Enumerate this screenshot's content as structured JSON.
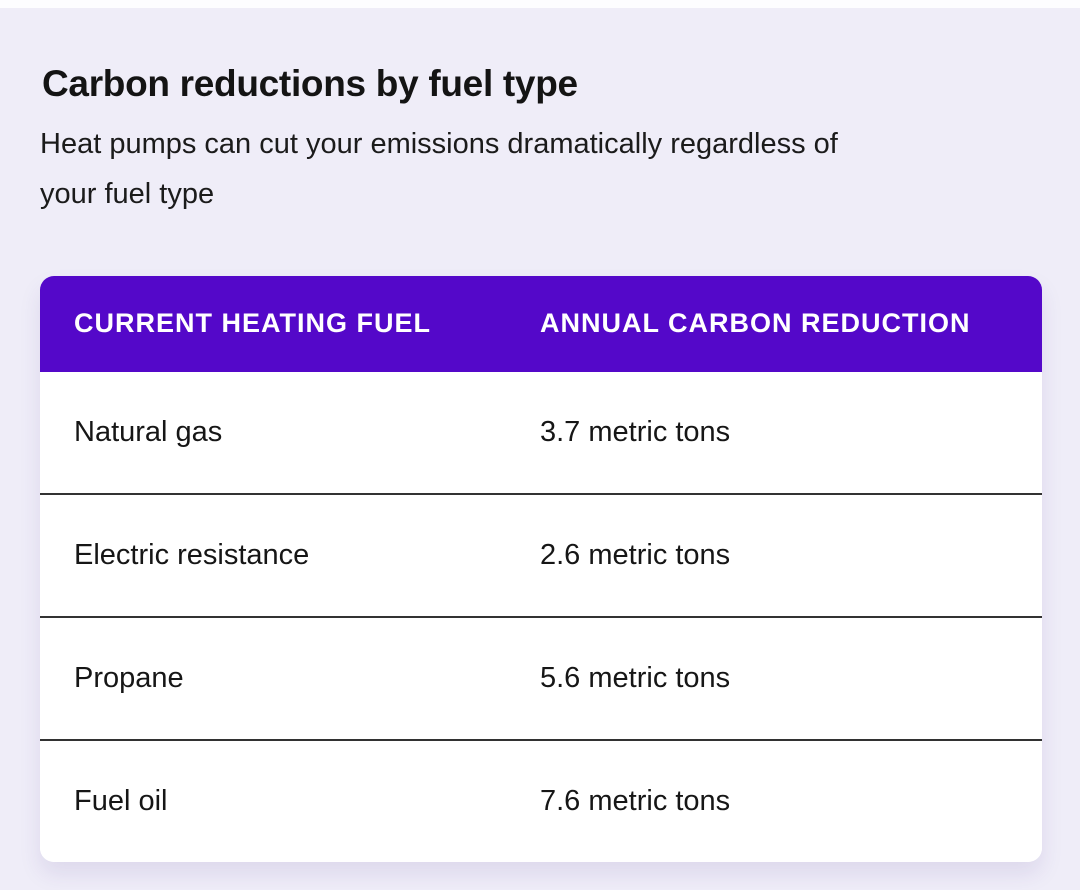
{
  "colors": {
    "page_bg": "#EFEDF8",
    "top_strip_bg": "#FDFDFF",
    "accent_header_bg": "#5408C9",
    "header_text": "#FFFFFF",
    "table_body_bg": "#FFFFFF",
    "row_divider": "#323232",
    "text": "#161616"
  },
  "header": {
    "title": "Carbon reductions by fuel type",
    "subtitle": "Heat pumps can cut your emissions dramatically regardless of your fuel type",
    "subtitle_line1": "Heat pumps can cut your emissions dramatically regardless of",
    "subtitle_line2": "your fuel type"
  },
  "chart_data": {
    "type": "table",
    "title": "Carbon reductions by fuel type",
    "subtitle": "Heat pumps can cut your emissions dramatically regardless of your fuel type",
    "columns": [
      "CURRENT HEATING FUEL",
      "ANNUAL CARBON REDUCTION"
    ],
    "rows": [
      {
        "fuel": "Natural gas",
        "reduction": "3.7 metric tons",
        "reduction_value": 3.7
      },
      {
        "fuel": "Electric resistance",
        "reduction": "2.6 metric tons",
        "reduction_value": 2.6
      },
      {
        "fuel": "Propane",
        "reduction": "5.6 metric tons",
        "reduction_value": 5.6
      },
      {
        "fuel": "Fuel oil",
        "reduction": "7.6 metric tons",
        "reduction_value": 7.6
      }
    ],
    "unit": "metric tons"
  }
}
